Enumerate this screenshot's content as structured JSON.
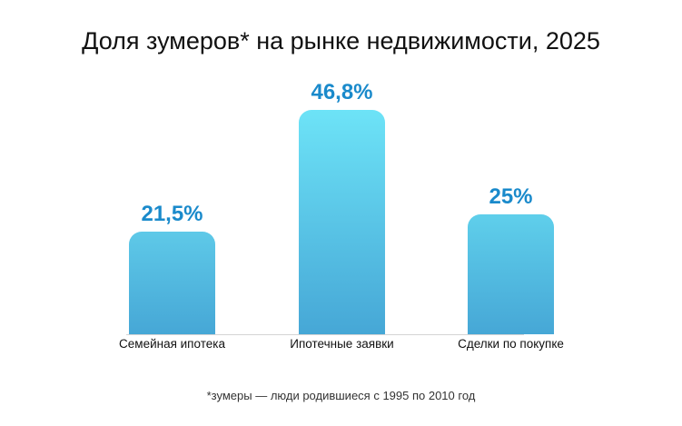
{
  "chart_data": {
    "type": "bar",
    "title": "Доля зумеров* на рынке недвижимости, 2025",
    "categories": [
      "Семейная ипотека",
      "Ипотечные заявки",
      "Сделки по покупке"
    ],
    "values": [
      21.5,
      46.8,
      25
    ],
    "value_labels": [
      "21,5%",
      "46,8%",
      "25%"
    ],
    "xlabel": "",
    "ylabel": "",
    "unit": "%",
    "grid": false,
    "legend": null,
    "footnote": "*зумеры — люди родившиеся с 1995 по 2010 год",
    "colors": {
      "bar_top": "#6de3f7",
      "bar_bottom": "#46a7d6",
      "value_label": "#1a8acb"
    }
  }
}
